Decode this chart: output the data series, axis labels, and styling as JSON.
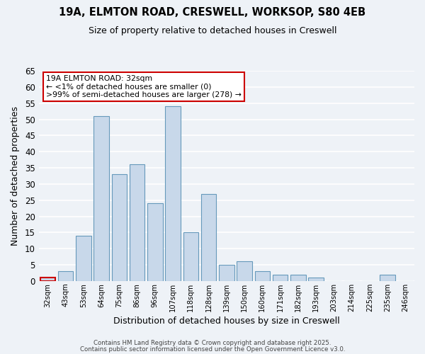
{
  "title_line1": "19A, ELMTON ROAD, CRESWELL, WORKSOP, S80 4EB",
  "title_line2": "Size of property relative to detached houses in Creswell",
  "xlabel": "Distribution of detached houses by size in Creswell",
  "ylabel": "Number of detached properties",
  "bar_labels": [
    "32sqm",
    "43sqm",
    "53sqm",
    "64sqm",
    "75sqm",
    "86sqm",
    "96sqm",
    "107sqm",
    "118sqm",
    "128sqm",
    "139sqm",
    "150sqm",
    "160sqm",
    "171sqm",
    "182sqm",
    "193sqm",
    "203sqm",
    "214sqm",
    "225sqm",
    "235sqm",
    "246sqm"
  ],
  "bar_values": [
    1,
    3,
    14,
    51,
    33,
    36,
    24,
    54,
    15,
    27,
    5,
    6,
    3,
    2,
    2,
    1,
    0,
    0,
    0,
    2,
    0
  ],
  "bar_color": "#c8d8ea",
  "bar_edge_color": "#6699bb",
  "highlight_bar_index": 0,
  "highlight_bar_edge_color": "#cc0000",
  "ylim": [
    0,
    65
  ],
  "yticks": [
    0,
    5,
    10,
    15,
    20,
    25,
    30,
    35,
    40,
    45,
    50,
    55,
    60,
    65
  ],
  "annotation_title": "19A ELMTON ROAD: 32sqm",
  "annotation_line1": "← <1% of detached houses are smaller (0)",
  "annotation_line2": ">99% of semi-detached houses are larger (278) →",
  "annotation_box_color": "#ffffff",
  "annotation_box_edge_color": "#cc0000",
  "footer_line1": "Contains HM Land Registry data © Crown copyright and database right 2025.",
  "footer_line2": "Contains public sector information licensed under the Open Government Licence v3.0.",
  "background_color": "#eef2f7",
  "grid_color": "#ffffff",
  "fig_width": 6.0,
  "fig_height": 5.0
}
